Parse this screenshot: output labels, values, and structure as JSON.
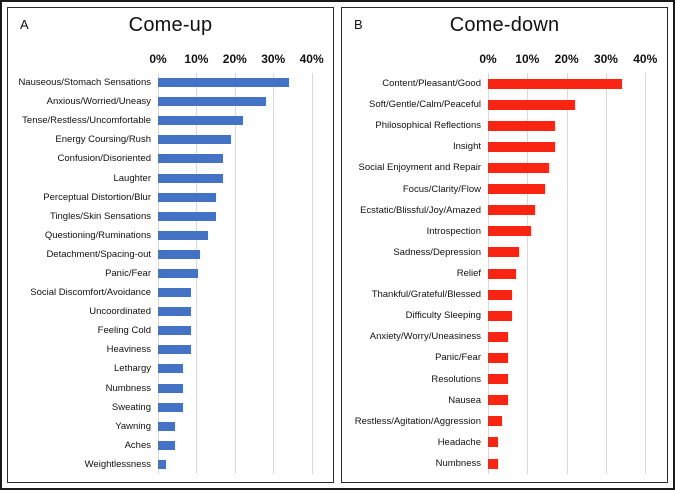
{
  "figure": {
    "description": "Two-panel horizontal bar chart figure",
    "grid_color": "#d9d9d9",
    "axis_max_percent": 44
  },
  "chart_data": [
    {
      "type": "bar",
      "orientation": "horizontal",
      "panel_label": "A",
      "title": "Come-up",
      "bar_color": "#4472C4",
      "axis_ticks": [
        {
          "label": "0%",
          "value": 0
        },
        {
          "label": "10%",
          "value": 10
        },
        {
          "label": "20%",
          "value": 20
        },
        {
          "label": "30%",
          "value": 30
        },
        {
          "label": "40%",
          "value": 40
        }
      ],
      "xlim": [
        0,
        44
      ],
      "categories": [
        "Nauseous/Stomach Sensations",
        "Anxious/Worried/Uneasy",
        "Tense/Restless/Uncomfortable",
        "Energy Coursing/Rush",
        "Confusion/Disoriented",
        "Laughter",
        "Perceptual Distortion/Blur",
        "Tingles/Skin Sensations",
        "Questioning/Ruminations",
        "Detachment/Spacing-out",
        "Panic/Fear",
        "Social Discomfort/Avoidance",
        "Uncoordinated",
        "Feeling Cold",
        "Heaviness",
        "Lethargy",
        "Numbness",
        "Sweating",
        "Yawning",
        "Aches",
        "Weightlessness"
      ],
      "values": [
        34,
        28,
        22,
        19,
        17,
        17,
        15,
        15,
        13,
        11,
        10.5,
        8.5,
        8.5,
        8.5,
        8.5,
        6.5,
        6.5,
        6.5,
        4.5,
        4.5,
        2
      ]
    },
    {
      "type": "bar",
      "orientation": "horizontal",
      "panel_label": "B",
      "title": "Come-down",
      "bar_color": "#FA2412",
      "axis_ticks": [
        {
          "label": "0%",
          "value": 0
        },
        {
          "label": "10%",
          "value": 10
        },
        {
          "label": "20%",
          "value": 20
        },
        {
          "label": "30%",
          "value": 30
        },
        {
          "label": "40%",
          "value": 40
        }
      ],
      "xlim": [
        0,
        44
      ],
      "categories": [
        "Content/Pleasant/Good",
        "Soft/Gentle/Calm/Peaceful",
        "Philosophical Reflections",
        "Insight",
        "Social Enjoyment and Repair",
        "Focus/Clarity/Flow",
        "Ecstatic/Blissful/Joy/Amazed",
        "Introspection",
        "Sadness/Depression",
        "Relief",
        "Thankful/Grateful/Blessed",
        "Difficulty Sleeping",
        "Anxiety/Worry/Uneasiness",
        "Panic/Fear",
        "Resolutions",
        "Nausea",
        "Restless/Agitation/Aggression",
        "Headache",
        "Numbness"
      ],
      "values": [
        34,
        22,
        17,
        17,
        15.5,
        14.5,
        12,
        11,
        8,
        7,
        6,
        6,
        5,
        5,
        5,
        5,
        3.5,
        2.5,
        2.5
      ]
    }
  ]
}
